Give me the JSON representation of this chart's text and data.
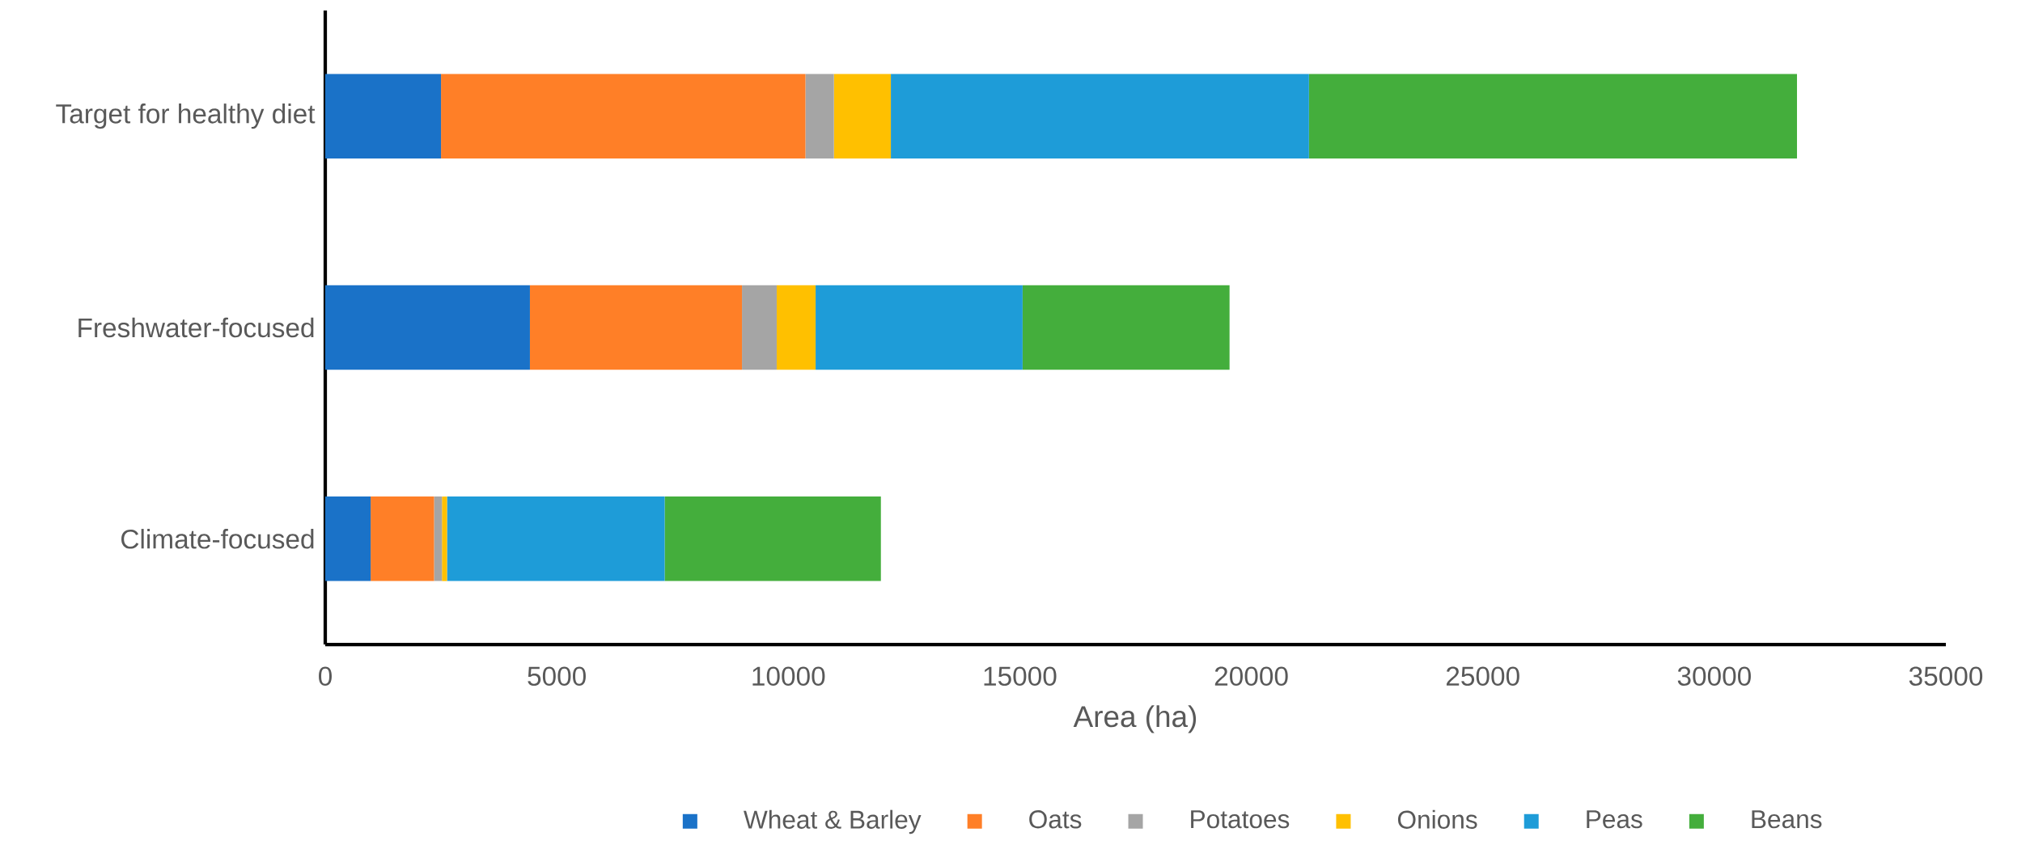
{
  "chart_data": {
    "type": "bar",
    "orientation": "horizontal",
    "stacked": true,
    "categories": [
      "Target for healthy diet",
      "Freshwater-focused",
      "Climate-focused"
    ],
    "series": [
      {
        "name": "Wheat & Barley",
        "color": "#1a72c8",
        "values": [
          2500,
          4420,
          980
        ]
      },
      {
        "name": "Oats",
        "color": "#ff7f27",
        "values": [
          7870,
          4580,
          1370
        ]
      },
      {
        "name": "Potatoes",
        "color": "#a5a5a5",
        "values": [
          615,
          750,
          170
        ]
      },
      {
        "name": "Onions",
        "color": "#ffc000",
        "values": [
          1230,
          840,
          110
        ]
      },
      {
        "name": "Peas",
        "color": "#1e9cd8",
        "values": [
          9030,
          4470,
          4700
        ]
      },
      {
        "name": "Beans",
        "color": "#44ae3c",
        "values": [
          10540,
          4470,
          4670
        ]
      }
    ],
    "xlabel": "Area (ha)",
    "xlim": [
      0,
      35000
    ],
    "xticks": [
      0,
      5000,
      10000,
      15000,
      20000,
      25000,
      30000,
      35000
    ],
    "legend": "bottom",
    "grid": false
  }
}
